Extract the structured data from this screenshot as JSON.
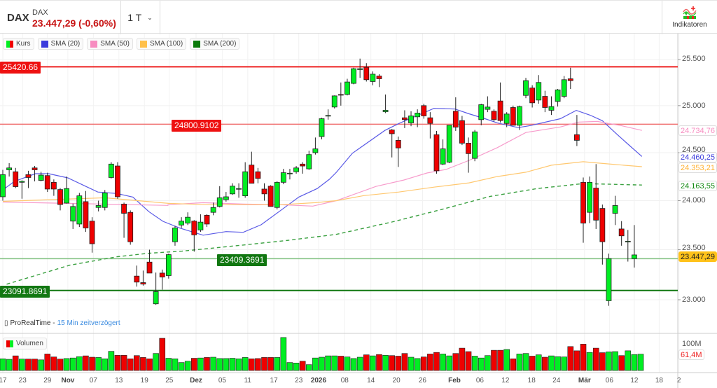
{
  "header": {
    "symbol": "DAX",
    "name": "DAX",
    "price_change": "23.447,29 (-0,60%)",
    "timeframe": "1 T",
    "indicators_label": "Indikatoren"
  },
  "legend": [
    {
      "label": "Kurs",
      "color": "candle"
    },
    {
      "label": "SMA (20)",
      "color": "#3b3bdc"
    },
    {
      "label": "SMA (50)",
      "color": "#f78cc0"
    },
    {
      "label": "SMA (100)",
      "color": "#ffc04a"
    },
    {
      "label": "SMA (200)",
      "color": "#0a7a0a"
    }
  ],
  "source": {
    "name": "ProRealTime -",
    "delay": "15 Min zeitverzögert"
  },
  "volume_label": "Volumen",
  "colors": {
    "up": "#00ee22",
    "down": "#ee0000"
  },
  "chart_data": {
    "type": "candlestick",
    "yscale": "log",
    "ylim": [
      22880,
      25560
    ],
    "y_ticks": [
      {
        "v": 25500,
        "label": "25.500"
      },
      {
        "v": 25000,
        "label": "25.000"
      },
      {
        "v": 24500,
        "label": "24.500"
      },
      {
        "v": 24000,
        "label": "24.000"
      },
      {
        "v": 23500,
        "label": "23.500"
      },
      {
        "v": 23000,
        "label": "23.000"
      }
    ],
    "x_labels": [
      {
        "i": 0,
        "label": "17"
      },
      {
        "i": 3.1,
        "label": "23"
      },
      {
        "i": 7,
        "label": "29"
      },
      {
        "i": 10.2,
        "label": "Nov",
        "bold": true
      },
      {
        "i": 14.2,
        "label": "07"
      },
      {
        "i": 18.2,
        "label": "13"
      },
      {
        "i": 22.2,
        "label": "19"
      },
      {
        "i": 26.1,
        "label": "25"
      },
      {
        "i": 30.3,
        "label": "Dez",
        "bold": true
      },
      {
        "i": 34.4,
        "label": "05"
      },
      {
        "i": 38.4,
        "label": "11"
      },
      {
        "i": 42.5,
        "label": "17"
      },
      {
        "i": 46.4,
        "label": "23"
      },
      {
        "i": 49.5,
        "label": "2026",
        "bold": true
      },
      {
        "i": 53.6,
        "label": "08"
      },
      {
        "i": 57.7,
        "label": "14"
      },
      {
        "i": 61.7,
        "label": "20"
      },
      {
        "i": 65.8,
        "label": "26"
      },
      {
        "i": 70.8,
        "label": "Feb",
        "bold": true
      },
      {
        "i": 74.8,
        "label": "06"
      },
      {
        "i": 78.8,
        "label": "12"
      },
      {
        "i": 82.9,
        "label": "18"
      },
      {
        "i": 86.8,
        "label": "24"
      },
      {
        "i": 91.2,
        "label": "Mär",
        "bold": true
      },
      {
        "i": 95.1,
        "label": "06"
      },
      {
        "i": 99,
        "label": "12"
      },
      {
        "i": 102.9,
        "label": "18"
      },
      {
        "i": 106,
        "label": "2"
      }
    ],
    "ohlc": [
      [
        24040,
        24320,
        24000,
        24270
      ],
      [
        24320,
        24390,
        24250,
        24340
      ],
      [
        24300,
        24340,
        24130,
        24145
      ],
      [
        24190,
        24210,
        24020,
        24200
      ],
      [
        24270,
        24310,
        24130,
        24240
      ],
      [
        24340,
        24360,
        24200,
        24320
      ],
      [
        24210,
        24300,
        24200,
        24265
      ],
      [
        24260,
        24290,
        24090,
        24120
      ],
      [
        24190,
        24220,
        24050,
        24120
      ],
      [
        24115,
        24130,
        23900,
        23960
      ],
      [
        23975,
        24250,
        23970,
        24125
      ],
      [
        23790,
        23970,
        23710,
        23940
      ],
      [
        23760,
        24080,
        23730,
        24050
      ],
      [
        23990,
        24100,
        23680,
        23720
      ],
      [
        23790,
        23830,
        23470,
        23560
      ],
      [
        23930,
        24000,
        23890,
        23950
      ],
      [
        23930,
        24110,
        23900,
        24080
      ],
      [
        24240,
        24400,
        24230,
        24380
      ],
      [
        24360,
        24400,
        24020,
        24040
      ],
      [
        23965,
        23980,
        23620,
        23870
      ],
      [
        23880,
        23900,
        23550,
        23580
      ],
      [
        23235,
        23340,
        23130,
        23175
      ],
      [
        23170,
        23290,
        23140,
        23155
      ],
      [
        23375,
        23500,
        23270,
        23265
      ],
      [
        22960,
        23270,
        22950,
        23080
      ],
      [
        23265,
        23300,
        23100,
        23225
      ],
      [
        23240,
        23460,
        23210,
        23450
      ],
      [
        23580,
        23740,
        23540,
        23720
      ],
      [
        23750,
        23830,
        23720,
        23790
      ],
      [
        23770,
        23880,
        23750,
        23830
      ],
      [
        23790,
        23800,
        23480,
        23650
      ],
      [
        23700,
        23860,
        23680,
        23780
      ],
      [
        23850,
        23860,
        23730,
        23760
      ],
      [
        23880,
        23980,
        23850,
        23930
      ],
      [
        23940,
        24150,
        23930,
        24030
      ],
      [
        24010,
        24090,
        23990,
        24040
      ],
      [
        24070,
        24180,
        24060,
        24150
      ],
      [
        24120,
        24180,
        24030,
        24125
      ],
      [
        24050,
        24400,
        24030,
        24300
      ],
      [
        24370,
        24510,
        24180,
        24180
      ],
      [
        24300,
        24340,
        24180,
        24230
      ],
      [
        24120,
        24180,
        24000,
        24070
      ],
      [
        24150,
        24160,
        23940,
        23940
      ],
      [
        23930,
        24200,
        23910,
        24190
      ],
      [
        24190,
        24330,
        24170,
        24290
      ],
      [
        24280,
        24330,
        24220,
        24285
      ],
      [
        24300,
        24360,
        24280,
        24340
      ],
      [
        24380,
        24400,
        24280,
        24360
      ],
      [
        24330,
        24520,
        24320,
        24480
      ],
      [
        24500,
        24660,
        24480,
        24540
      ],
      [
        24670,
        24870,
        24640,
        24860
      ],
      [
        24890,
        24960,
        24850,
        24895
      ],
      [
        24985,
        25110,
        24970,
        25105
      ],
      [
        25120,
        25250,
        25000,
        25115
      ],
      [
        25120,
        25290,
        25110,
        25255
      ],
      [
        25240,
        25410,
        25230,
        25400
      ],
      [
        25390,
        25510,
        25300,
        25400
      ],
      [
        25415,
        25460,
        25260,
        25280
      ],
      [
        25260,
        25370,
        25220,
        25340
      ],
      [
        25320,
        25340,
        25200,
        25290
      ],
      [
        24935,
        25120,
        24920,
        24950
      ],
      [
        24740,
        24750,
        24450,
        24700
      ],
      [
        24630,
        24670,
        24350,
        24550
      ],
      [
        24870,
        24950,
        24760,
        24850
      ],
      [
        24815,
        24940,
        24780,
        24890
      ],
      [
        24880,
        24960,
        24770,
        24920
      ],
      [
        25000,
        25020,
        24860,
        24890
      ],
      [
        24870,
        24930,
        24650,
        24810
      ],
      [
        24690,
        24730,
        24280,
        24310
      ],
      [
        24380,
        24640,
        24370,
        24540
      ],
      [
        24400,
        24790,
        24390,
        24790
      ],
      [
        24940,
        25090,
        24730,
        24770
      ],
      [
        24840,
        24890,
        24580,
        24600
      ],
      [
        24600,
        24660,
        24290,
        24490
      ],
      [
        24440,
        24740,
        24410,
        24720
      ],
      [
        24850,
        25020,
        24790,
        25010
      ],
      [
        24960,
        25100,
        24930,
        24985
      ],
      [
        24940,
        24960,
        24830,
        24850
      ],
      [
        25050,
        25250,
        24820,
        24840
      ],
      [
        24810,
        24930,
        24770,
        24910
      ],
      [
        24980,
        25000,
        24790,
        24790
      ],
      [
        24790,
        25000,
        24740,
        24990
      ],
      [
        25110,
        25300,
        25080,
        25270
      ],
      [
        25190,
        25220,
        24980,
        25030
      ],
      [
        25060,
        25330,
        25020,
        25250
      ],
      [
        25100,
        25160,
        24930,
        24980
      ],
      [
        24950,
        25100,
        24900,
        24990
      ],
      [
        25045,
        25180,
        24990,
        25170
      ],
      [
        25100,
        25320,
        25080,
        25280
      ],
      [
        25290,
        25410,
        25180,
        25270
      ],
      [
        24690,
        24900,
        24570,
        24630
      ],
      [
        24190,
        24240,
        23570,
        23770
      ],
      [
        23880,
        24250,
        23770,
        24190
      ],
      [
        24130,
        24380,
        23710,
        23800
      ],
      [
        23920,
        23960,
        23350,
        23580
      ],
      [
        22990,
        23460,
        22940,
        23410
      ],
      [
        23870,
        24050,
        23750,
        23950
      ],
      [
        23710,
        23790,
        23540,
        23640
      ],
      [
        23580,
        23700,
        23380,
        23585
      ],
      [
        23410,
        23750,
        23320,
        23447.29
      ]
    ],
    "volume_millions": [
      44,
      42,
      55,
      43,
      43,
      43,
      40,
      62,
      51,
      43,
      45,
      47,
      52,
      55,
      50,
      49,
      44,
      72,
      57,
      57,
      44,
      56,
      49,
      44,
      64,
      121,
      46,
      44,
      30,
      35,
      46,
      47,
      49,
      50,
      45,
      45,
      46,
      44,
      49,
      44,
      45,
      49,
      49,
      49,
      124,
      30,
      28,
      35,
      22,
      47,
      50,
      55,
      55,
      54,
      51,
      45,
      50,
      59,
      55,
      60,
      57,
      56,
      54,
      64,
      50,
      45,
      51,
      62,
      68,
      62,
      55,
      64,
      84,
      71,
      54,
      47,
      56,
      76,
      76,
      79,
      44,
      62,
      64,
      54,
      59,
      50,
      55,
      52,
      51,
      90,
      74,
      99,
      68,
      84,
      67,
      70,
      71,
      56,
      74,
      60,
      61.4
    ],
    "volume_ticks": [
      {
        "v": 100,
        "label": "100M"
      }
    ],
    "volume_last": "61,4M",
    "sma": [
      {
        "name": "SMA (20)",
        "color": "#5a5ae6",
        "last": "24.460,25",
        "points": [
          [
            0,
            24111
          ],
          [
            1.8,
            24199
          ],
          [
            5.1,
            24280
          ],
          [
            7.2,
            24280
          ],
          [
            10.2,
            24236
          ],
          [
            14.9,
            24089
          ],
          [
            17.9,
            24074
          ],
          [
            20.4,
            24037
          ],
          [
            22.9,
            23887
          ],
          [
            25.1,
            23788
          ],
          [
            27.8,
            23718
          ],
          [
            31.4,
            23647
          ],
          [
            35,
            23683
          ],
          [
            37.7,
            23676
          ],
          [
            40.5,
            23753
          ],
          [
            44.2,
            23930
          ],
          [
            46.4,
            24037
          ],
          [
            49.3,
            24125
          ],
          [
            51.2,
            24221
          ],
          [
            52.3,
            24295
          ],
          [
            54.8,
            24493
          ],
          [
            59.9,
            24735
          ],
          [
            62.1,
            24809
          ],
          [
            65.1,
            24897
          ],
          [
            67.6,
            24971
          ],
          [
            70.9,
            24963
          ],
          [
            73.1,
            24912
          ],
          [
            75.6,
            24860
          ],
          [
            77.5,
            24816
          ],
          [
            80.8,
            24765
          ],
          [
            82.7,
            24787
          ],
          [
            87.4,
            24860
          ],
          [
            89.9,
            24949
          ],
          [
            92.1,
            24897
          ],
          [
            94,
            24838
          ],
          [
            96.2,
            24699
          ],
          [
            98.4,
            24566
          ],
          [
            100.2,
            24460
          ]
        ]
      },
      {
        "name": "SMA (50)",
        "color": "#f79ccc",
        "last": "24.734,76",
        "points": [
          [
            0,
            23986
          ],
          [
            25.9,
            23951
          ],
          [
            25.9,
            23958
          ],
          [
            31.4,
            23979
          ],
          [
            37.7,
            23965
          ],
          [
            43.5,
            23958
          ],
          [
            48.6,
            23944
          ],
          [
            52.3,
            24000
          ],
          [
            54.5,
            24052
          ],
          [
            58.5,
            24147
          ],
          [
            62.9,
            24214
          ],
          [
            66.5,
            24287
          ],
          [
            69.5,
            24324
          ],
          [
            73.1,
            24419
          ],
          [
            77.5,
            24552
          ],
          [
            82,
            24713
          ],
          [
            87.4,
            24772
          ],
          [
            90.3,
            24824
          ],
          [
            93.2,
            24831
          ],
          [
            96.9,
            24787
          ],
          [
            100.2,
            24735
          ]
        ]
      },
      {
        "name": "SMA (100)",
        "color": "#ffc870",
        "last": "24.353,21",
        "points": [
          [
            0,
            23993
          ],
          [
            16,
            24030
          ],
          [
            26,
            23972
          ],
          [
            32.5,
            23958
          ],
          [
            43.5,
            23958
          ],
          [
            49,
            23979
          ],
          [
            52.3,
            24000
          ],
          [
            56.6,
            24052
          ],
          [
            62.1,
            24089
          ],
          [
            67.6,
            24140
          ],
          [
            73.1,
            24184
          ],
          [
            77.5,
            24250
          ],
          [
            82,
            24295
          ],
          [
            86,
            24368
          ],
          [
            91,
            24405
          ],
          [
            94.7,
            24383
          ],
          [
            100.2,
            24353
          ]
        ]
      },
      {
        "name": "SMA (200)",
        "color": "#3aa040",
        "dashed": true,
        "last": "24.163,55",
        "points": [
          [
            0.6,
            23154
          ],
          [
            10.5,
            23344
          ],
          [
            17.9,
            23429
          ],
          [
            22.9,
            23464
          ],
          [
            28.1,
            23485
          ],
          [
            36.9,
            23542
          ],
          [
            44.2,
            23591
          ],
          [
            52.3,
            23655
          ],
          [
            61,
            23781
          ],
          [
            68.7,
            23908
          ],
          [
            76.4,
            24044
          ],
          [
            83.8,
            24125
          ],
          [
            91,
            24177
          ],
          [
            100.2,
            24162
          ]
        ]
      }
    ],
    "levels": [
      {
        "value": 25420.66,
        "label": "25420.66",
        "color": "#ee2222",
        "width": 2
      },
      {
        "value": 24800.9102,
        "label": "24800.9102",
        "color": "#f07070",
        "width": 1.5
      },
      {
        "value": 23409.3691,
        "label": "23409.3691",
        "color": "#80c080",
        "width": 1.5,
        "label_bg": "#117711"
      },
      {
        "value": 23091.8691,
        "label": "23091.8691",
        "color": "#117711",
        "width": 2
      }
    ],
    "last_price": {
      "value": 23447.29,
      "label": "23.447,29",
      "color": "#ffc21a"
    }
  }
}
